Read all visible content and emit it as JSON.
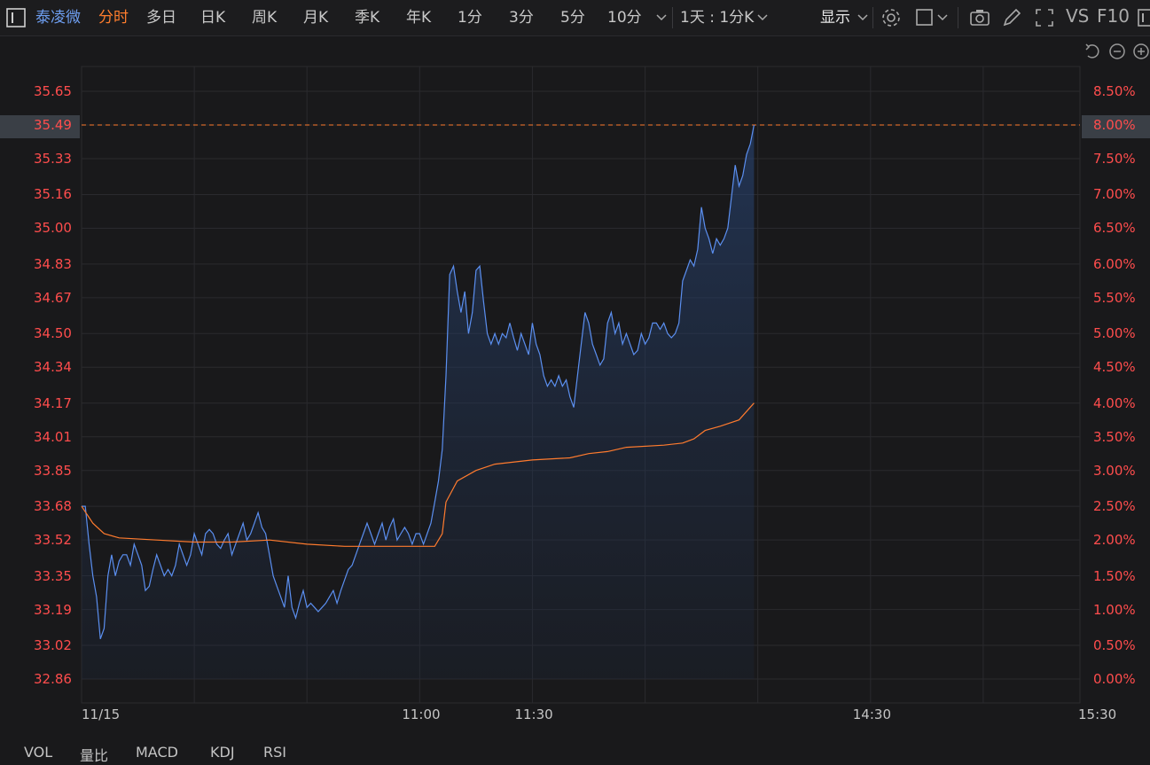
{
  "toolbar": {
    "stock_name": "泰凌微",
    "periods": [
      "分时",
      "多日",
      "日K",
      "周K",
      "月K",
      "季K",
      "年K",
      "1分",
      "3分",
      "5分",
      "10分"
    ],
    "active_period": "分时",
    "range_label": "1天 : 1分K",
    "display_label": "显示",
    "vs_label": "VS",
    "f10_label": "F10",
    "icons": [
      "settings-icon",
      "checkbox-icon",
      "camera-icon",
      "pencil-icon",
      "fullscreen-icon"
    ]
  },
  "chart_controls": {
    "icons": [
      "undo-icon",
      "zoom-out-icon",
      "zoom-in-icon"
    ]
  },
  "bottom_tabs": [
    "VOL",
    "量比",
    "MACD",
    "KDJ",
    "RSI"
  ],
  "colors": {
    "price_line": "#5b8ff0",
    "avg_line": "#ff7b2e",
    "up_red": "#ff4d4d",
    "highlight_line": "#ff7b2e",
    "background": "#19191b"
  },
  "chart_data": {
    "type": "line",
    "y_ticks_price": [
      "35.65",
      "35.49",
      "35.33",
      "35.16",
      "35.00",
      "34.83",
      "34.67",
      "34.50",
      "34.34",
      "34.17",
      "34.01",
      "33.85",
      "33.68",
      "33.52",
      "33.35",
      "33.19",
      "33.02",
      "32.86"
    ],
    "y_ticks_pct": [
      "8.50%",
      "8.00%",
      "7.50%",
      "7.00%",
      "6.50%",
      "6.00%",
      "5.50%",
      "5.00%",
      "4.50%",
      "4.00%",
      "3.50%",
      "3.00%",
      "2.50%",
      "2.00%",
      "1.50%",
      "1.00%",
      "0.50%",
      "0.00%"
    ],
    "ylim": [
      32.86,
      35.65
    ],
    "x_ticks": [
      "11/15",
      "11:00",
      "11:30",
      "14:30",
      "15:30"
    ],
    "x_tick_minutes": [
      0,
      90,
      120,
      210,
      270
    ],
    "xlim": [
      0,
      270
    ],
    "highlight_price": "35.49",
    "highlight_pct": "8.00%",
    "series": [
      {
        "values": [
          [
            0,
            33.68
          ],
          [
            1,
            33.68
          ],
          [
            2,
            33.5
          ],
          [
            3,
            33.35
          ],
          [
            4,
            33.25
          ],
          [
            5,
            33.05
          ],
          [
            6,
            33.1
          ],
          [
            7,
            33.35
          ],
          [
            8,
            33.45
          ],
          [
            9,
            33.35
          ],
          [
            10,
            33.42
          ],
          [
            11,
            33.45
          ],
          [
            12,
            33.45
          ],
          [
            13,
            33.4
          ],
          [
            14,
            33.5
          ],
          [
            15,
            33.45
          ],
          [
            16,
            33.4
          ],
          [
            17,
            33.28
          ],
          [
            18,
            33.3
          ],
          [
            19,
            33.38
          ],
          [
            20,
            33.45
          ],
          [
            21,
            33.4
          ],
          [
            22,
            33.35
          ],
          [
            23,
            33.38
          ],
          [
            24,
            33.35
          ],
          [
            25,
            33.4
          ],
          [
            26,
            33.5
          ],
          [
            27,
            33.45
          ],
          [
            28,
            33.4
          ],
          [
            29,
            33.45
          ],
          [
            30,
            33.55
          ],
          [
            31,
            33.5
          ],
          [
            32,
            33.45
          ],
          [
            33,
            33.55
          ],
          [
            34,
            33.57
          ],
          [
            35,
            33.55
          ],
          [
            36,
            33.5
          ],
          [
            37,
            33.48
          ],
          [
            38,
            33.52
          ],
          [
            39,
            33.55
          ],
          [
            40,
            33.45
          ],
          [
            41,
            33.5
          ],
          [
            42,
            33.55
          ],
          [
            43,
            33.6
          ],
          [
            44,
            33.52
          ],
          [
            45,
            33.55
          ],
          [
            46,
            33.6
          ],
          [
            47,
            33.65
          ],
          [
            48,
            33.58
          ],
          [
            49,
            33.55
          ],
          [
            50,
            33.45
          ],
          [
            51,
            33.35
          ],
          [
            52,
            33.3
          ],
          [
            53,
            33.25
          ],
          [
            54,
            33.2
          ],
          [
            55,
            33.35
          ],
          [
            56,
            33.2
          ],
          [
            57,
            33.15
          ],
          [
            58,
            33.22
          ],
          [
            59,
            33.28
          ],
          [
            60,
            33.2
          ],
          [
            61,
            33.22
          ],
          [
            62,
            33.2
          ],
          [
            63,
            33.18
          ],
          [
            64,
            33.2
          ],
          [
            65,
            33.22
          ],
          [
            66,
            33.25
          ],
          [
            67,
            33.28
          ],
          [
            68,
            33.22
          ],
          [
            69,
            33.28
          ],
          [
            70,
            33.33
          ],
          [
            71,
            33.38
          ],
          [
            72,
            33.4
          ],
          [
            73,
            33.45
          ],
          [
            74,
            33.5
          ],
          [
            75,
            33.55
          ],
          [
            76,
            33.6
          ],
          [
            77,
            33.55
          ],
          [
            78,
            33.5
          ],
          [
            79,
            33.55
          ],
          [
            80,
            33.6
          ],
          [
            81,
            33.52
          ],
          [
            82,
            33.58
          ],
          [
            83,
            33.62
          ],
          [
            84,
            33.52
          ],
          [
            85,
            33.55
          ],
          [
            86,
            33.58
          ],
          [
            87,
            33.55
          ],
          [
            88,
            33.5
          ],
          [
            89,
            33.55
          ],
          [
            90,
            33.55
          ],
          [
            91,
            33.5
          ],
          [
            92,
            33.55
          ],
          [
            93,
            33.6
          ],
          [
            94,
            33.7
          ],
          [
            95,
            33.8
          ],
          [
            96,
            33.95
          ],
          [
            97,
            34.3
          ],
          [
            98,
            34.78
          ],
          [
            99,
            34.82
          ],
          [
            100,
            34.7
          ],
          [
            101,
            34.6
          ],
          [
            102,
            34.7
          ],
          [
            103,
            34.5
          ],
          [
            104,
            34.6
          ],
          [
            105,
            34.8
          ],
          [
            106,
            34.82
          ],
          [
            107,
            34.65
          ],
          [
            108,
            34.5
          ],
          [
            109,
            34.45
          ],
          [
            110,
            34.5
          ],
          [
            111,
            34.45
          ],
          [
            112,
            34.5
          ],
          [
            113,
            34.48
          ],
          [
            114,
            34.55
          ],
          [
            115,
            34.48
          ],
          [
            116,
            34.42
          ],
          [
            117,
            34.5
          ],
          [
            118,
            34.45
          ],
          [
            119,
            34.4
          ],
          [
            120,
            34.55
          ],
          [
            121,
            34.45
          ],
          [
            122,
            34.4
          ],
          [
            123,
            34.3
          ],
          [
            124,
            34.25
          ],
          [
            125,
            34.28
          ],
          [
            126,
            34.25
          ],
          [
            127,
            34.3
          ],
          [
            128,
            34.25
          ],
          [
            129,
            34.28
          ],
          [
            130,
            34.2
          ],
          [
            131,
            34.15
          ],
          [
            132,
            34.3
          ],
          [
            133,
            34.45
          ],
          [
            134,
            34.6
          ],
          [
            135,
            34.55
          ],
          [
            136,
            34.45
          ],
          [
            137,
            34.4
          ],
          [
            138,
            34.35
          ],
          [
            139,
            34.38
          ],
          [
            140,
            34.55
          ],
          [
            141,
            34.6
          ],
          [
            142,
            34.5
          ],
          [
            143,
            34.55
          ],
          [
            144,
            34.45
          ],
          [
            145,
            34.5
          ],
          [
            146,
            34.45
          ],
          [
            147,
            34.4
          ],
          [
            148,
            34.42
          ],
          [
            149,
            34.5
          ],
          [
            150,
            34.45
          ],
          [
            151,
            34.48
          ],
          [
            152,
            34.55
          ],
          [
            153,
            34.55
          ],
          [
            154,
            34.52
          ],
          [
            155,
            34.55
          ],
          [
            156,
            34.5
          ],
          [
            157,
            34.48
          ],
          [
            158,
            34.5
          ],
          [
            159,
            34.55
          ],
          [
            160,
            34.75
          ],
          [
            161,
            34.8
          ],
          [
            162,
            34.85
          ],
          [
            163,
            34.82
          ],
          [
            164,
            34.9
          ],
          [
            165,
            35.1
          ],
          [
            166,
            35.0
          ],
          [
            167,
            34.95
          ],
          [
            168,
            34.88
          ],
          [
            169,
            34.95
          ],
          [
            170,
            34.92
          ],
          [
            171,
            34.95
          ],
          [
            172,
            35.0
          ],
          [
            173,
            35.15
          ],
          [
            174,
            35.3
          ],
          [
            175,
            35.2
          ],
          [
            176,
            35.25
          ],
          [
            177,
            35.35
          ],
          [
            178,
            35.4
          ],
          [
            179,
            35.49
          ]
        ],
        "color": "#5b8ff0"
      },
      {
        "values": [
          [
            0,
            33.68
          ],
          [
            3,
            33.6
          ],
          [
            6,
            33.55
          ],
          [
            10,
            33.53
          ],
          [
            20,
            33.52
          ],
          [
            30,
            33.51
          ],
          [
            40,
            33.51
          ],
          [
            50,
            33.52
          ],
          [
            60,
            33.5
          ],
          [
            70,
            33.49
          ],
          [
            80,
            33.49
          ],
          [
            90,
            33.49
          ],
          [
            94,
            33.49
          ],
          [
            96,
            33.55
          ],
          [
            97,
            33.7
          ],
          [
            100,
            33.8
          ],
          [
            105,
            33.85
          ],
          [
            110,
            33.88
          ],
          [
            120,
            33.9
          ],
          [
            130,
            33.91
          ],
          [
            135,
            33.93
          ],
          [
            140,
            33.94
          ],
          [
            145,
            33.96
          ],
          [
            155,
            33.97
          ],
          [
            160,
            33.98
          ],
          [
            163,
            34.0
          ],
          [
            166,
            34.04
          ],
          [
            170,
            34.06
          ],
          [
            175,
            34.09
          ],
          [
            179,
            34.17
          ]
        ],
        "color": "#ff7b2e"
      }
    ]
  }
}
